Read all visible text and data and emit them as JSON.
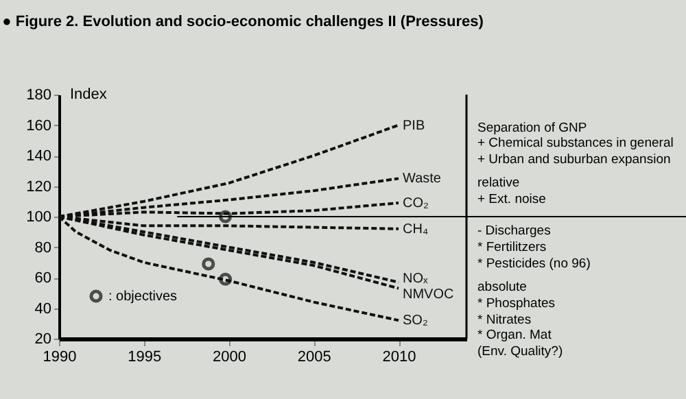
{
  "chart_data": {
    "type": "line",
    "title": "● Figure 2. Evolution and socio-economic challenges II (Pressures)",
    "ylabel": "Index",
    "xlim": [
      1990,
      2014
    ],
    "xticks": [
      1990,
      1995,
      2000,
      2005,
      2010
    ],
    "ylim": [
      20,
      180
    ],
    "yticks": [
      20,
      40,
      60,
      80,
      100,
      120,
      140,
      160,
      180
    ],
    "grid": false,
    "line_style": "dashed",
    "legend": "bottom left",
    "series": [
      {
        "name": "PIB",
        "color": "#111111",
        "x": [
          1990,
          1992,
          1995,
          2000,
          2005,
          2008,
          2010
        ],
        "values": [
          100,
          104,
          110,
          122,
          140,
          152,
          160
        ]
      },
      {
        "name": "Waste",
        "color": "#111111",
        "x": [
          1990,
          1995,
          2000,
          2005,
          2010
        ],
        "values": [
          100,
          106,
          111,
          117,
          125
        ]
      },
      {
        "name": "CO₂",
        "color": "#111111",
        "x": [
          1990,
          1995,
          2000,
          2005,
          2010
        ],
        "values": [
          100,
          103,
          102,
          104,
          109
        ]
      },
      {
        "name": "CH₄",
        "color": "#111111",
        "x": [
          1990,
          1995,
          2000,
          2005,
          2010
        ],
        "values": [
          100,
          94,
          94,
          93,
          92
        ]
      },
      {
        "name": "NOₓ",
        "color": "#111111",
        "x": [
          1990,
          1995,
          2000,
          2005,
          2010
        ],
        "values": [
          100,
          90,
          80,
          70,
          57
        ]
      },
      {
        "name": "NMVOC",
        "color": "#111111",
        "x": [
          1990,
          1995,
          2000,
          2005,
          2010
        ],
        "values": [
          100,
          88,
          78,
          68,
          53
        ]
      },
      {
        "name": "SO₂",
        "color": "#111111",
        "x": [
          1990,
          1991,
          1993,
          1995,
          2000,
          2005,
          2010
        ],
        "values": [
          100,
          90,
          78,
          70,
          58,
          44,
          32
        ]
      },
      {
        "name": ": objectives",
        "type": "scatter",
        "marker": "circle",
        "color": "#111111",
        "x": [
          1999.8,
          1998.8,
          1999.8
        ],
        "values": [
          100,
          69,
          59
        ]
      }
    ],
    "ref_lines": [
      {
        "axis": "y",
        "value": 100
      }
    ],
    "annotations": [
      "Separation of GNP",
      "+ Chemical substances in general",
      "+ Urban and suburban expansion",
      "relative",
      "+ Ext. noise",
      "- Discharges",
      "* Fertilitzers",
      "* Pesticides (no 96)",
      "absolute",
      "* Phosphates",
      "* Nitrates",
      "* Organ. Mat",
      "(Env. Quality?)"
    ]
  }
}
